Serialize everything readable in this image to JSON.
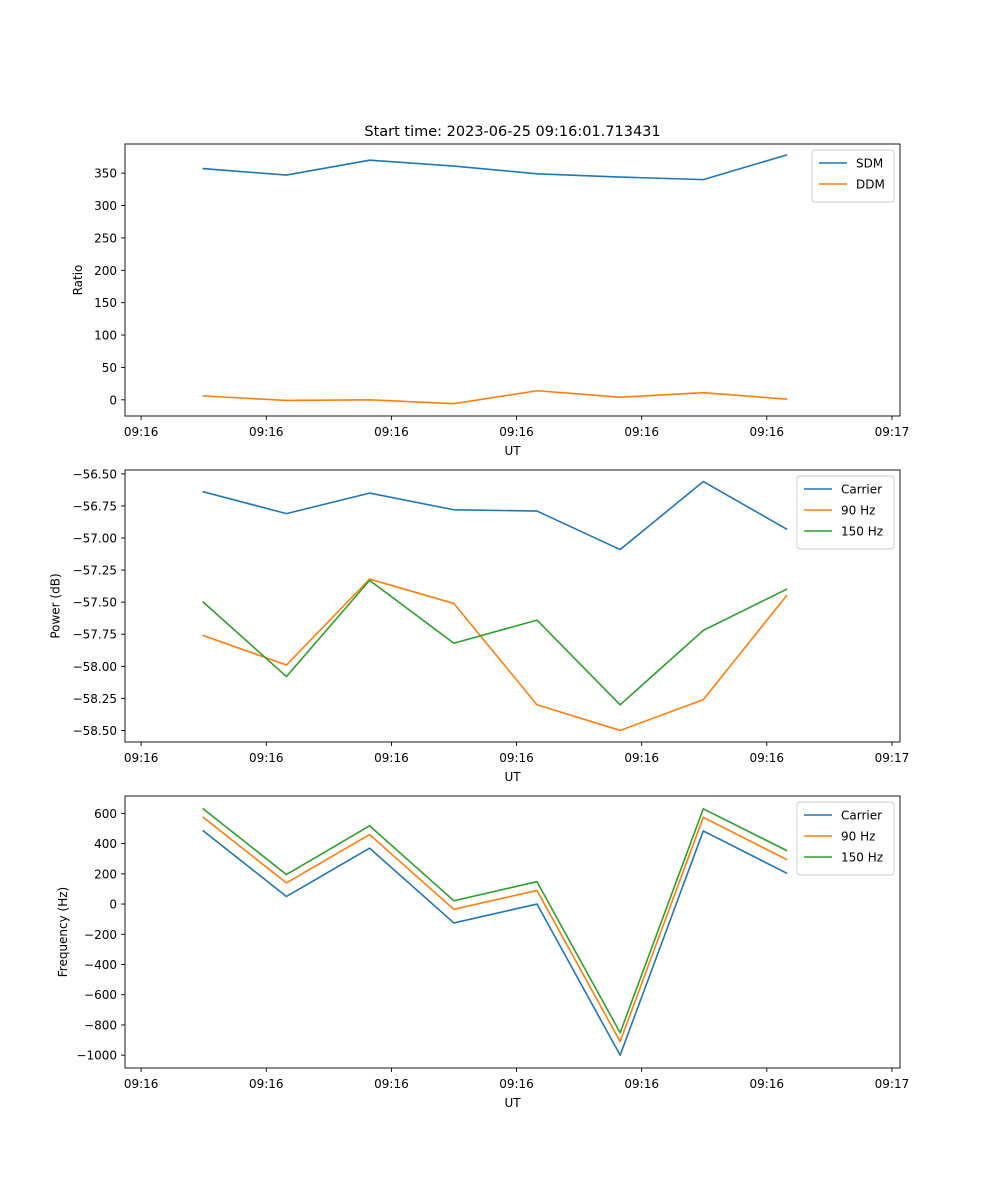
{
  "chart_data": [
    {
      "type": "line",
      "title": "Start time: 2023-06-25 09:16:01.713431",
      "xlabel": "UT",
      "ylabel": "Ratio",
      "xticks": [
        "09:16",
        "09:16",
        "09:16",
        "09:16",
        "09:16",
        "09:16",
        "09:16"
      ],
      "xticks_last": "09:17",
      "yticks": [
        0,
        50,
        100,
        150,
        200,
        250,
        300,
        350
      ],
      "ylim": [
        -25,
        395
      ],
      "grid": false,
      "legend": "top-right",
      "series": [
        {
          "name": "SDM",
          "color": "#1f77b4",
          "values": [
            357,
            347,
            370,
            361,
            349,
            344,
            340,
            378
          ]
        },
        {
          "name": "DDM",
          "color": "#ff7f0e",
          "values": [
            6,
            -1,
            0,
            -6,
            14,
            4,
            11,
            1
          ]
        }
      ]
    },
    {
      "type": "line",
      "title": "",
      "xlabel": "UT",
      "ylabel": "Power (dB)",
      "xticks": [
        "09:16",
        "09:16",
        "09:16",
        "09:16",
        "09:16",
        "09:16",
        "09:16"
      ],
      "xticks_last": "09:17",
      "yticks": [
        -58.5,
        -58.25,
        -58.0,
        -57.75,
        -57.5,
        -57.25,
        -57.0,
        -56.75,
        -56.5
      ],
      "ytick_labels": [
        "−58.50",
        "−58.25",
        "−58.00",
        "−57.75",
        "−57.50",
        "−57.25",
        "−57.00",
        "−56.75",
        "−56.50"
      ],
      "ylim": [
        -58.59,
        -56.47
      ],
      "grid": false,
      "legend": "top-right",
      "series": [
        {
          "name": "Carrier",
          "color": "#1f77b4",
          "values": [
            -56.64,
            -56.81,
            -56.65,
            -56.78,
            -56.79,
            -57.09,
            -56.56,
            -56.93
          ]
        },
        {
          "name": "90 Hz",
          "color": "#ff7f0e",
          "values": [
            -57.76,
            -57.99,
            -57.32,
            -57.51,
            -58.3,
            -58.5,
            -58.26,
            -57.45
          ]
        },
        {
          "name": "150 Hz",
          "color": "#2ca02c",
          "values": [
            -57.5,
            -58.08,
            -57.33,
            -57.82,
            -57.64,
            -58.3,
            -57.72,
            -57.4
          ]
        }
      ]
    },
    {
      "type": "line",
      "title": "",
      "xlabel": "UT",
      "ylabel": "Frequency (Hz)",
      "xticks": [
        "09:16",
        "09:16",
        "09:16",
        "09:16",
        "09:16",
        "09:16",
        "09:16"
      ],
      "xticks_last": "09:17",
      "yticks": [
        -1000,
        -800,
        -600,
        -400,
        -200,
        0,
        200,
        400,
        600
      ],
      "ytick_labels": [
        "−1000",
        "−800",
        "−600",
        "−400",
        "−200",
        "0",
        "200",
        "400",
        "600"
      ],
      "ylim": [
        -1085,
        715
      ],
      "grid": false,
      "legend": "top-right",
      "series": [
        {
          "name": "Carrier",
          "color": "#1f77b4",
          "values": [
            484,
            50,
            370,
            -125,
            0,
            -1000,
            484,
            205
          ]
        },
        {
          "name": "90 Hz",
          "color": "#ff7f0e",
          "values": [
            574,
            140,
            460,
            -35,
            90,
            -910,
            574,
            295
          ]
        },
        {
          "name": "150 Hz",
          "color": "#2ca02c",
          "values": [
            630,
            195,
            518,
            22,
            148,
            -852,
            630,
            355
          ]
        }
      ]
    }
  ]
}
